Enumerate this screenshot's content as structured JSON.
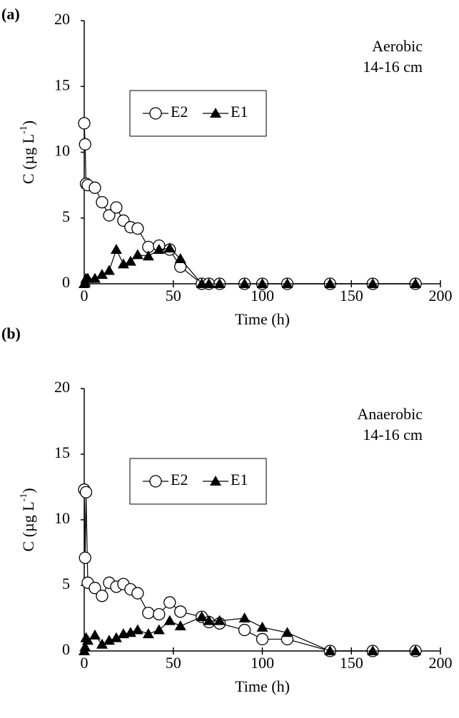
{
  "chart_data": [
    {
      "type": "line",
      "panel": "(a)",
      "annotation": [
        "Aerobic",
        "14-16 cm"
      ],
      "xlabel": "Time (h)",
      "ylabel": {
        "text": "C (µg L",
        "superscript": "-1",
        "suffix": ")"
      },
      "x": [
        0,
        0.5,
        1,
        2,
        6,
        10,
        14,
        18,
        22,
        26,
        30,
        36,
        42,
        48,
        54,
        66,
        70,
        76,
        90,
        100,
        114,
        138,
        162,
        186
      ],
      "series": [
        {
          "name": "E2",
          "marker": "circle",
          "color": "#000000",
          "values": [
            12.2,
            10.6,
            7.6,
            7.5,
            7.3,
            6.2,
            5.2,
            5.8,
            4.8,
            4.3,
            4.2,
            2.8,
            2.9,
            2.6,
            1.3,
            0,
            0,
            0,
            0,
            0,
            0,
            0,
            0,
            0
          ]
        },
        {
          "name": "E1",
          "marker": "triangle",
          "color": "#000000",
          "values": [
            0,
            0.1,
            0.4,
            0.4,
            0.4,
            0.7,
            1.0,
            2.6,
            1.5,
            1.7,
            2.2,
            2.1,
            2.6,
            2.7,
            1.9,
            0,
            0,
            0,
            0,
            0,
            0,
            0,
            0,
            0
          ]
        }
      ],
      "xlim": [
        0,
        200
      ],
      "ylim": [
        0,
        20
      ],
      "xticks": [
        0,
        50,
        100,
        150,
        200
      ],
      "yticks": [
        0,
        5,
        10,
        15,
        20
      ]
    },
    {
      "type": "line",
      "panel": "(b)",
      "annotation": [
        "Anaerobic",
        "14-16 cm"
      ],
      "xlabel": "Time (h)",
      "ylabel": {
        "text": "C (µg L",
        "superscript": "-1",
        "suffix": ")"
      },
      "x": [
        0,
        0.5,
        1,
        2,
        6,
        10,
        14,
        18,
        22,
        26,
        30,
        36,
        42,
        48,
        54,
        66,
        70,
        76,
        90,
        100,
        114,
        138,
        162,
        186
      ],
      "series": [
        {
          "name": "E2",
          "marker": "circle",
          "color": "#000000",
          "values": [
            12.3,
            7.1,
            12.1,
            5.2,
            4.8,
            4.2,
            5.2,
            4.9,
            5.1,
            4.7,
            4.4,
            2.9,
            2.8,
            3.7,
            3.0,
            2.6,
            2.2,
            2.1,
            1.6,
            0.9,
            0.9,
            0,
            0,
            0
          ]
        },
        {
          "name": "E1",
          "marker": "triangle",
          "color": "#000000",
          "values": [
            0,
            0.3,
            1.0,
            0.8,
            1.2,
            0.5,
            0.8,
            1.0,
            1.3,
            1.4,
            1.6,
            1.3,
            1.6,
            2.3,
            1.9,
            2.6,
            2.3,
            2.3,
            2.5,
            1.8,
            1.4,
            0,
            0,
            0
          ]
        }
      ],
      "xlim": [
        0,
        200
      ],
      "ylim": [
        0,
        20
      ],
      "xticks": [
        0,
        50,
        100,
        150,
        200
      ],
      "yticks": [
        0,
        5,
        10,
        15,
        20
      ]
    }
  ]
}
